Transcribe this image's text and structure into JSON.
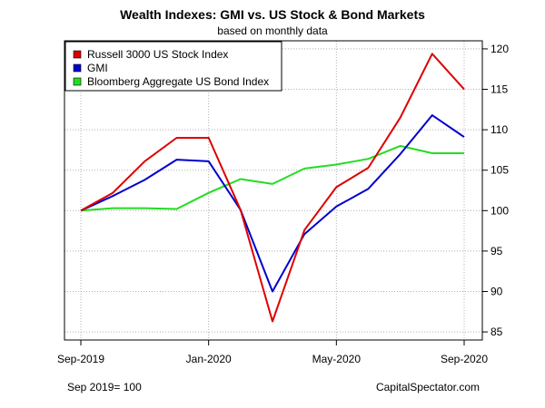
{
  "header": {
    "title": "Wealth Indexes: GMI vs. US Stock & Bond Markets",
    "subtitle": "based on monthly data"
  },
  "footer": {
    "left": "Sep 2019= 100",
    "right": "CapitalSpectator.com"
  },
  "chart_data": {
    "type": "line",
    "title": "Wealth Indexes: GMI vs. US Stock & Bond Markets",
    "subtitle": "based on monthly data",
    "x": [
      "2019-09",
      "2019-10",
      "2019-11",
      "2019-12",
      "2020-01",
      "2020-02",
      "2020-03",
      "2020-04",
      "2020-05",
      "2020-06",
      "2020-07",
      "2020-08",
      "2020-09"
    ],
    "x_tick_labels": [
      {
        "month": "2019-09",
        "label": "Sep-2019"
      },
      {
        "month": "2020-01",
        "label": "Jan-2020"
      },
      {
        "month": "2020-05",
        "label": "May-2020"
      },
      {
        "month": "2020-09",
        "label": "Sep-2020"
      }
    ],
    "ylim": [
      84,
      121
    ],
    "y_ticks": [
      85,
      90,
      95,
      100,
      105,
      110,
      115,
      120
    ],
    "y_axis_side": "right",
    "grid": true,
    "legend_position": "top-left",
    "series": [
      {
        "name": "Russell 3000 US Stock Index",
        "color": "#dd0000",
        "values": [
          100.0,
          102.2,
          106.1,
          109.0,
          109.0,
          100.1,
          86.3,
          97.6,
          102.9,
          105.3,
          111.5,
          119.4,
          115.0
        ]
      },
      {
        "name": "GMI",
        "color": "#0000cc",
        "values": [
          100.0,
          101.8,
          103.8,
          106.3,
          106.1,
          100.1,
          90.0,
          97.1,
          100.5,
          102.7,
          107.0,
          111.8,
          109.1
        ]
      },
      {
        "name": "Bloomberg Aggregate US Bond Index",
        "color": "#22dd22",
        "values": [
          100.0,
          100.3,
          100.3,
          100.2,
          102.2,
          103.9,
          103.3,
          105.2,
          105.7,
          106.4,
          108.0,
          107.1,
          107.1
        ]
      }
    ]
  }
}
